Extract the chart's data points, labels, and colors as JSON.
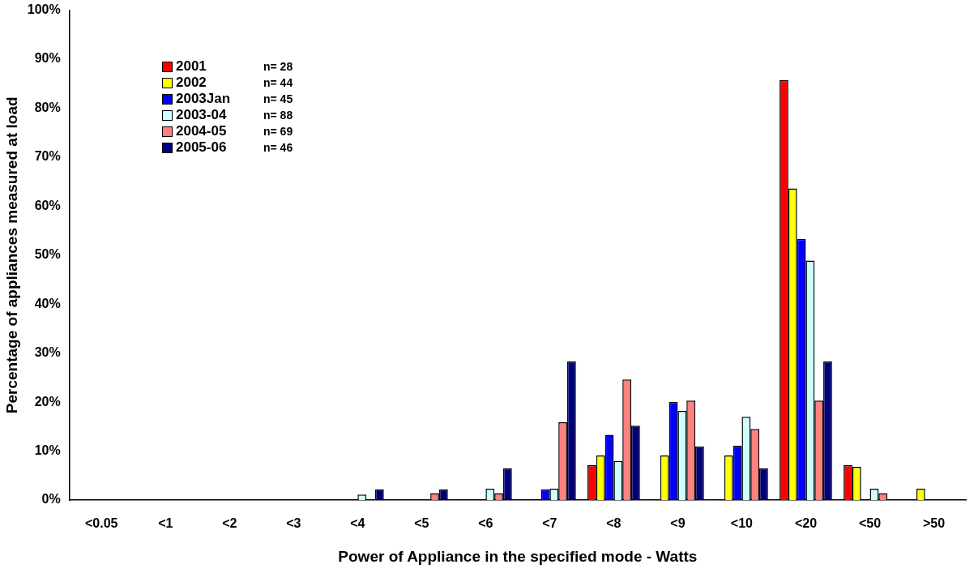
{
  "chart_data": {
    "type": "bar",
    "xlabel": "Power of Appliance in the specified mode - Watts",
    "ylabel": "Percentage of appliances measured at load",
    "categories": [
      "<0.05",
      "<1",
      "<2",
      "<3",
      "<4",
      "<5",
      "<6",
      "<7",
      "<8",
      "<9",
      "<10",
      "<20",
      "<50",
      ">50"
    ],
    "series": [
      {
        "name": "2001",
        "color": "#ff0000",
        "values": [
          0,
          0,
          0,
          0,
          0,
          0,
          0,
          0,
          7.1,
          0,
          0,
          85.7,
          7.1,
          0
        ]
      },
      {
        "name": "2002",
        "color": "#ffff00",
        "values": [
          0,
          0,
          0,
          0,
          0,
          0,
          0,
          0,
          9.1,
          9.1,
          9.1,
          63.6,
          6.8,
          2.3
        ]
      },
      {
        "name": "2003Jan",
        "color": "#0000ff",
        "values": [
          0,
          0,
          0,
          0,
          0,
          0,
          0,
          2.2,
          13.3,
          20.0,
          11.1,
          53.3,
          0,
          0
        ]
      },
      {
        "name": "2003-04",
        "color": "#ccffff",
        "values": [
          0,
          0,
          0,
          0,
          1.1,
          0,
          2.3,
          2.3,
          8.0,
          18.2,
          17.0,
          48.9,
          2.3,
          0
        ]
      },
      {
        "name": "2004-05",
        "color": "#ff8080",
        "values": [
          0,
          0,
          0,
          0,
          0,
          1.4,
          1.4,
          15.9,
          24.6,
          20.3,
          14.5,
          20.3,
          1.4,
          0
        ]
      },
      {
        "name": "2005-06",
        "color": "#000080",
        "values": [
          0,
          0,
          0,
          0,
          2.2,
          2.2,
          6.5,
          28.3,
          15.2,
          10.9,
          6.5,
          28.3,
          0,
          0
        ]
      }
    ],
    "annotations": [
      "n= 28",
      "n= 44",
      "n= 45",
      "n= 88",
      "n= 69",
      "n= 46"
    ],
    "ylim": [
      0,
      100
    ],
    "yticks": [
      {
        "value": 0,
        "label": "0%"
      },
      {
        "value": 10,
        "label": "10%"
      },
      {
        "value": 20,
        "label": "20%"
      },
      {
        "value": 30,
        "label": "30%"
      },
      {
        "value": 40,
        "label": "40%"
      },
      {
        "value": 50,
        "label": "50%"
      },
      {
        "value": 60,
        "label": "60%"
      },
      {
        "value": 70,
        "label": "70%"
      },
      {
        "value": 80,
        "label": "80%"
      },
      {
        "value": 90,
        "label": "90%"
      },
      {
        "value": 100,
        "label": "100%"
      }
    ],
    "grid": false,
    "legend": "top left"
  }
}
